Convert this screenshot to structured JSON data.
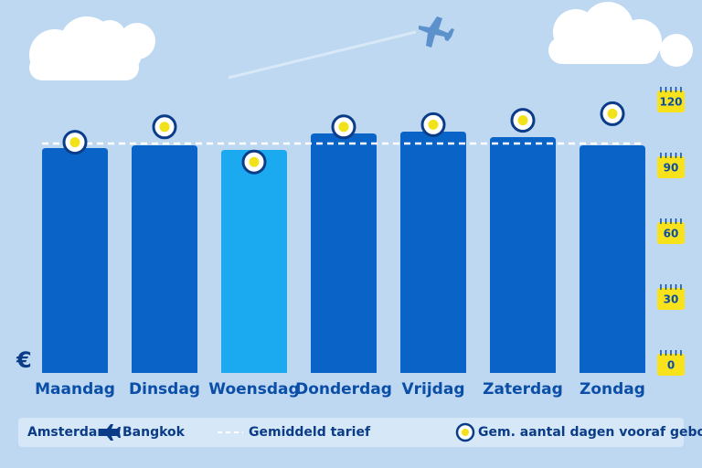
{
  "chart_data": {
    "type": "bar",
    "route": {
      "from": "Amsterdam",
      "to": "Bangkok"
    },
    "y_label": "€",
    "categories": [
      "Maandag",
      "Dinsdag",
      "Woensdag",
      "Donderdag",
      "Vrijdag",
      "Zaterdag",
      "Zondag"
    ],
    "values": [
      246,
      249,
      244,
      262,
      264,
      258,
      249
    ],
    "colors": [
      "#0a64c8",
      "#0a64c8",
      "#1ba9f0",
      "#0a64c8",
      "#0a64c8",
      "#0a64c8",
      "#0a64c8"
    ],
    "average": {
      "name": "Gemiddeld tarief",
      "value": 251
    },
    "days": {
      "name": "Gem. aantal dagen vooraf geboekt",
      "axis": "y2",
      "values": [
        101,
        108,
        92,
        108,
        109,
        111,
        114
      ]
    },
    "ylim": [
      0,
      300
    ],
    "y2lim": [
      0,
      120
    ],
    "y2ticks": [
      0,
      30,
      60,
      90,
      120
    ]
  }
}
